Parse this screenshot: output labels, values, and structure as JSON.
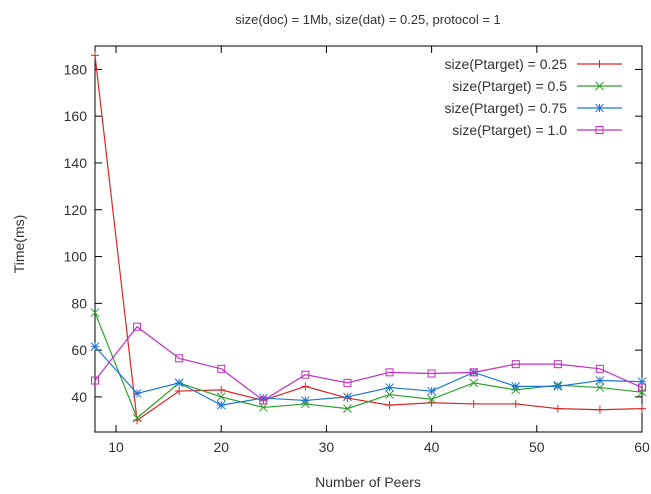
{
  "chart_data": {
    "type": "line",
    "title": "size(doc) = 1Mb, size(dat) = 0.25, protocol = 1",
    "xlabel": "Number of Peers",
    "ylabel": "Time(ms)",
    "xlim": [
      8,
      60
    ],
    "ylim": [
      25,
      190
    ],
    "xticks": [
      10,
      20,
      30,
      40,
      50,
      60
    ],
    "yticks": [
      40,
      60,
      80,
      100,
      120,
      140,
      160,
      180
    ],
    "grid": false,
    "legend_position": "top-right",
    "x": [
      8,
      12,
      16,
      20,
      24,
      28,
      32,
      36,
      40,
      44,
      48,
      52,
      56,
      60
    ],
    "series": [
      {
        "name": "size(Ptarget) = 0.25",
        "color": "#d62728",
        "marker": "plus",
        "values": [
          186,
          30,
          42.5,
          43,
          38.5,
          44.5,
          39.5,
          36.5,
          37.5,
          37,
          37,
          35,
          34.5,
          35
        ]
      },
      {
        "name": "size(Ptarget) = 0.5",
        "color": "#2ca02c",
        "marker": "x",
        "values": [
          76,
          31,
          46,
          40,
          35.5,
          37,
          35,
          41,
          39,
          46,
          43,
          45,
          44,
          42
        ]
      },
      {
        "name": "size(Ptarget) = 0.75",
        "color": "#1f77d4",
        "marker": "asterisk",
        "values": [
          61.5,
          41.5,
          46,
          36.5,
          39.5,
          38.5,
          40,
          44,
          42.5,
          50.5,
          44.5,
          44.5,
          47,
          46.5
        ]
      },
      {
        "name": "size(Ptarget) = 1.0",
        "color": "#c030c0",
        "marker": "square",
        "values": [
          47,
          70,
          56.5,
          52,
          38.5,
          49.5,
          46,
          50.5,
          50,
          50.5,
          54,
          54,
          52,
          44
        ]
      }
    ]
  }
}
